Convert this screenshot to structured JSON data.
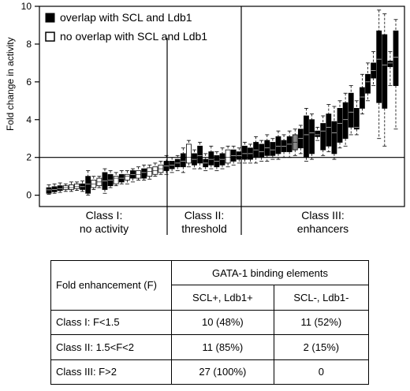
{
  "chart_data": {
    "type": "box",
    "ylabel": "Fold change in activity",
    "ylim": [
      -0.6,
      10
    ],
    "yticks": [
      0,
      2,
      4,
      6,
      8,
      10
    ],
    "threshold_line": 2,
    "legend": [
      {
        "label": "overlap with SCL and Ldb1",
        "fill": "#000000"
      },
      {
        "label": "no overlap with SCL and Ldb1",
        "fill": "#ffffff"
      }
    ],
    "legend_position": "top-left",
    "class_labels": [
      {
        "line1": "Class I:",
        "line2": "no activity"
      },
      {
        "line1": "Class II:",
        "line2": "threshold"
      },
      {
        "line1": "Class III:",
        "line2": "enhancers"
      }
    ],
    "class_boundaries": [
      1.5,
      2
    ],
    "boxes": [
      {
        "median": 0.28,
        "q1": 0.1,
        "q3": 0.4,
        "lo": 0.05,
        "hi": 0.55,
        "fill": "black"
      },
      {
        "median": 0.3,
        "q1": 0.18,
        "q3": 0.45,
        "lo": 0.1,
        "hi": 0.6,
        "fill": "black"
      },
      {
        "median": 0.35,
        "q1": 0.25,
        "q3": 0.5,
        "lo": 0.15,
        "hi": 0.65,
        "fill": "black"
      },
      {
        "median": 0.4,
        "q1": 0.3,
        "q3": 0.5,
        "lo": 0.2,
        "hi": 0.6,
        "fill": "white"
      },
      {
        "median": 0.4,
        "q1": 0.3,
        "q3": 0.55,
        "lo": 0.2,
        "hi": 0.7,
        "fill": "white"
      },
      {
        "median": 0.45,
        "q1": 0.35,
        "q3": 0.6,
        "lo": 0.25,
        "hi": 0.7,
        "fill": "white"
      },
      {
        "median": 0.45,
        "q1": 0.3,
        "q3": 0.6,
        "lo": 0.2,
        "hi": 0.75,
        "fill": "black"
      },
      {
        "median": 0.6,
        "q1": 0.1,
        "q3": 1.0,
        "lo": 0.0,
        "hi": 1.3,
        "fill": "black"
      },
      {
        "median": 0.6,
        "q1": 0.4,
        "q3": 0.8,
        "lo": 0.3,
        "hi": 1.0,
        "fill": "white"
      },
      {
        "median": 0.7,
        "q1": 0.5,
        "q3": 0.9,
        "lo": 0.4,
        "hi": 1.0,
        "fill": "white"
      },
      {
        "median": 0.75,
        "q1": 0.3,
        "q3": 1.2,
        "lo": 0.1,
        "hi": 1.4,
        "fill": "black"
      },
      {
        "median": 0.8,
        "q1": 0.5,
        "q3": 1.1,
        "lo": 0.4,
        "hi": 1.3,
        "fill": "black"
      },
      {
        "median": 0.9,
        "q1": 0.6,
        "q3": 1.0,
        "lo": 0.5,
        "hi": 1.2,
        "fill": "white"
      },
      {
        "median": 0.9,
        "q1": 0.7,
        "q3": 1.1,
        "lo": 0.6,
        "hi": 1.3,
        "fill": "black"
      },
      {
        "median": 1.0,
        "q1": 0.8,
        "q3": 1.1,
        "lo": 0.6,
        "hi": 1.3,
        "fill": "white"
      },
      {
        "median": 1.1,
        "q1": 0.9,
        "q3": 1.3,
        "lo": 0.7,
        "hi": 1.4,
        "fill": "black"
      },
      {
        "median": 1.1,
        "q1": 0.9,
        "q3": 1.3,
        "lo": 0.8,
        "hi": 1.5,
        "fill": "white"
      },
      {
        "median": 1.2,
        "q1": 0.9,
        "q3": 1.4,
        "lo": 0.8,
        "hi": 1.6,
        "fill": "black"
      },
      {
        "median": 1.25,
        "q1": 1.0,
        "q3": 1.45,
        "lo": 0.85,
        "hi": 1.6,
        "fill": "white"
      },
      {
        "median": 1.3,
        "q1": 1.1,
        "q3": 1.5,
        "lo": 1.0,
        "hi": 1.7,
        "fill": "white"
      },
      {
        "median": 1.4,
        "q1": 1.2,
        "q3": 1.6,
        "lo": 1.1,
        "hi": 1.8,
        "fill": "white"
      },
      {
        "median": 1.55,
        "q1": 1.3,
        "q3": 1.8,
        "lo": 1.1,
        "hi": 2.1,
        "fill": "black"
      },
      {
        "median": 1.6,
        "q1": 1.4,
        "q3": 1.8,
        "lo": 1.2,
        "hi": 2.0,
        "fill": "black"
      },
      {
        "median": 1.7,
        "q1": 1.5,
        "q3": 1.9,
        "lo": 1.3,
        "hi": 2.1,
        "fill": "black"
      },
      {
        "median": 1.8,
        "q1": 1.5,
        "q3": 2.2,
        "lo": 1.2,
        "hi": 2.5,
        "fill": "black"
      },
      {
        "median": 2.0,
        "q1": 1.7,
        "q3": 2.7,
        "lo": 1.5,
        "hi": 2.9,
        "fill": "white"
      },
      {
        "median": 1.9,
        "q1": 1.6,
        "q3": 2.2,
        "lo": 1.4,
        "hi": 2.4,
        "fill": "black"
      },
      {
        "median": 2.1,
        "q1": 1.7,
        "q3": 2.6,
        "lo": 1.4,
        "hi": 2.8,
        "fill": "black"
      },
      {
        "median": 1.7,
        "q1": 1.5,
        "q3": 1.9,
        "lo": 1.3,
        "hi": 2.2,
        "fill": "black"
      },
      {
        "median": 1.9,
        "q1": 1.6,
        "q3": 2.3,
        "lo": 1.4,
        "hi": 2.6,
        "fill": "black"
      },
      {
        "median": 1.8,
        "q1": 1.5,
        "q3": 2.1,
        "lo": 1.3,
        "hi": 2.3,
        "fill": "black"
      },
      {
        "median": 1.9,
        "q1": 1.6,
        "q3": 2.2,
        "lo": 1.4,
        "hi": 2.5,
        "fill": "black"
      },
      {
        "median": 2.0,
        "q1": 1.7,
        "q3": 2.4,
        "lo": 1.5,
        "hi": 2.6,
        "fill": "white"
      },
      {
        "median": 2.1,
        "q1": 1.8,
        "q3": 2.4,
        "lo": 1.6,
        "hi": 2.6,
        "fill": "black"
      },
      {
        "median": 2.1,
        "q1": 1.9,
        "q3": 2.3,
        "lo": 1.7,
        "hi": 2.5,
        "fill": "black"
      },
      {
        "median": 2.2,
        "q1": 1.9,
        "q3": 2.6,
        "lo": 1.7,
        "hi": 2.8,
        "fill": "black"
      },
      {
        "median": 2.2,
        "q1": 1.9,
        "q3": 2.5,
        "lo": 1.7,
        "hi": 2.7,
        "fill": "black"
      },
      {
        "median": 2.4,
        "q1": 2.0,
        "q3": 2.8,
        "lo": 1.7,
        "hi": 3.1,
        "fill": "black"
      },
      {
        "median": 2.3,
        "q1": 2.0,
        "q3": 2.7,
        "lo": 1.8,
        "hi": 2.9,
        "fill": "black"
      },
      {
        "median": 2.5,
        "q1": 2.1,
        "q3": 2.9,
        "lo": 1.8,
        "hi": 3.2,
        "fill": "black"
      },
      {
        "median": 2.4,
        "q1": 2.1,
        "q3": 2.8,
        "lo": 1.9,
        "hi": 3.0,
        "fill": "black"
      },
      {
        "median": 2.6,
        "q1": 2.2,
        "q3": 3.1,
        "lo": 1.9,
        "hi": 3.4,
        "fill": "black"
      },
      {
        "median": 2.6,
        "q1": 2.3,
        "q3": 2.9,
        "lo": 2.0,
        "hi": 3.2,
        "fill": "black"
      },
      {
        "median": 2.7,
        "q1": 2.3,
        "q3": 3.1,
        "lo": 2.0,
        "hi": 3.4,
        "fill": "black"
      },
      {
        "median": 2.8,
        "q1": 2.4,
        "q3": 3.2,
        "lo": 2.1,
        "hi": 3.5,
        "fill": "gray"
      },
      {
        "median": 3.0,
        "q1": 2.5,
        "q3": 3.5,
        "lo": 2.2,
        "hi": 3.7,
        "fill": "black"
      },
      {
        "median": 3.2,
        "q1": 2.0,
        "q3": 4.2,
        "lo": 1.8,
        "hi": 4.6,
        "fill": "black"
      },
      {
        "median": 3.3,
        "q1": 2.2,
        "q3": 4.0,
        "lo": 1.9,
        "hi": 4.3,
        "fill": "black"
      },
      {
        "median": 3.2,
        "q1": 3.1,
        "q3": 3.4,
        "lo": 2.9,
        "hi": 3.6,
        "fill": "black"
      },
      {
        "median": 3.4,
        "q1": 2.4,
        "q3": 3.8,
        "lo": 2.1,
        "hi": 4.2,
        "fill": "black"
      },
      {
        "median": 3.6,
        "q1": 2.6,
        "q3": 4.3,
        "lo": 2.3,
        "hi": 4.8,
        "fill": "black"
      },
      {
        "median": 3.3,
        "q1": 2.2,
        "q3": 3.9,
        "lo": 1.9,
        "hi": 4.7,
        "fill": "black"
      },
      {
        "median": 3.8,
        "q1": 2.8,
        "q3": 4.6,
        "lo": 2.5,
        "hi": 5.0,
        "fill": "black"
      },
      {
        "median": 4.0,
        "q1": 3.0,
        "q3": 4.9,
        "lo": 2.6,
        "hi": 5.4,
        "fill": "black"
      },
      {
        "median": 4.4,
        "q1": 3.6,
        "q3": 5.4,
        "lo": 3.2,
        "hi": 5.8,
        "fill": "black"
      },
      {
        "median": 3.6,
        "q1": 3.5,
        "q3": 4.6,
        "lo": 3.2,
        "hi": 5.0,
        "fill": "black"
      },
      {
        "median": 5.2,
        "q1": 4.6,
        "q3": 5.7,
        "lo": 4.3,
        "hi": 6.4,
        "fill": "black"
      },
      {
        "median": 6.0,
        "q1": 5.4,
        "q3": 6.4,
        "lo": 5.0,
        "hi": 7.0,
        "fill": "black"
      },
      {
        "median": 6.6,
        "q1": 6.2,
        "q3": 7.0,
        "lo": 5.8,
        "hi": 7.6,
        "fill": "black"
      },
      {
        "median": 7.2,
        "q1": 4.9,
        "q3": 8.7,
        "lo": 3.0,
        "hi": 9.8,
        "fill": "black"
      },
      {
        "median": 6.9,
        "q1": 4.6,
        "q3": 8.5,
        "lo": 2.6,
        "hi": 9.6,
        "fill": "black"
      },
      {
        "median": 7.0,
        "q1": 6.8,
        "q3": 7.1,
        "lo": 5.8,
        "hi": 7.6,
        "fill": "black"
      },
      {
        "median": 7.3,
        "q1": 5.8,
        "q3": 8.7,
        "lo": 3.5,
        "hi": 9.3,
        "fill": "black"
      }
    ]
  },
  "table": {
    "header_col1": "Fold enhancement (F)",
    "header_group": "GATA-1 binding elements",
    "sub_col1": "SCL+, Ldb1+",
    "sub_col2": "SCL-, Ldb1-",
    "rows": [
      {
        "label": "Class I:  F<1.5",
        "col1": "10 (48%)",
        "col2": "11 (52%)"
      },
      {
        "label": "Class II:  1.5<F<2",
        "col1": "11 (85%)",
        "col2": "2 (15%)"
      },
      {
        "label": "Class III:  F>2",
        "col1": "27 (100%)",
        "col2": "0"
      }
    ]
  }
}
